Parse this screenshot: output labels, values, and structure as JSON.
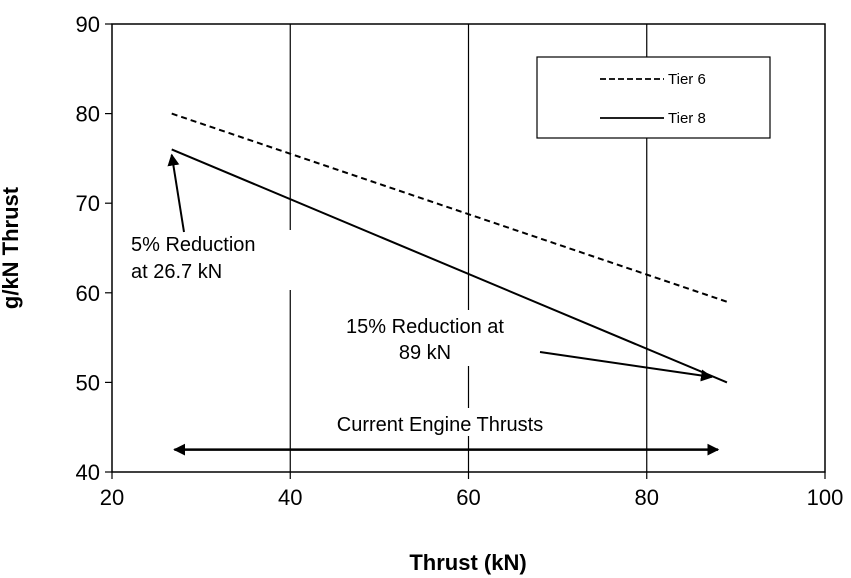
{
  "chart_data": {
    "type": "line",
    "xlabel": "Thrust (kN)",
    "ylabel": "g/kN Thrust",
    "xlim": [
      20,
      100
    ],
    "ylim": [
      40,
      90
    ],
    "x_ticks": [
      20,
      40,
      60,
      80,
      100
    ],
    "y_ticks": [
      40,
      50,
      60,
      70,
      80,
      90
    ],
    "vertical_gridlines": [
      40,
      60,
      80
    ],
    "grid": "vertical-only",
    "legend": {
      "placement": "top-right",
      "entries": [
        {
          "name": "Tier 6",
          "style": "dashed"
        },
        {
          "name": "Tier 8",
          "style": "solid"
        }
      ]
    },
    "series": [
      {
        "name": "Tier 6",
        "style": "dashed",
        "color": "#000000",
        "x": [
          26.7,
          89
        ],
        "y": [
          80,
          59
        ]
      },
      {
        "name": "Tier 8",
        "style": "solid",
        "color": "#000000",
        "x": [
          26.7,
          89
        ],
        "y": [
          76,
          50
        ]
      }
    ],
    "annotations": [
      {
        "id": "reduction-5",
        "lines": [
          "5% Reduction",
          "at 26.7 kN"
        ],
        "arrow_to": [
          26.7,
          75.4
        ]
      },
      {
        "id": "reduction-15",
        "lines": [
          "15% Reduction at",
          "89 kN"
        ],
        "arrow_to": [
          87.3,
          50.6
        ]
      },
      {
        "id": "current-engine-thrusts",
        "lines": [
          "Current Engine Thrusts"
        ],
        "range": [
          27,
          88
        ],
        "y": 42.5
      }
    ]
  }
}
